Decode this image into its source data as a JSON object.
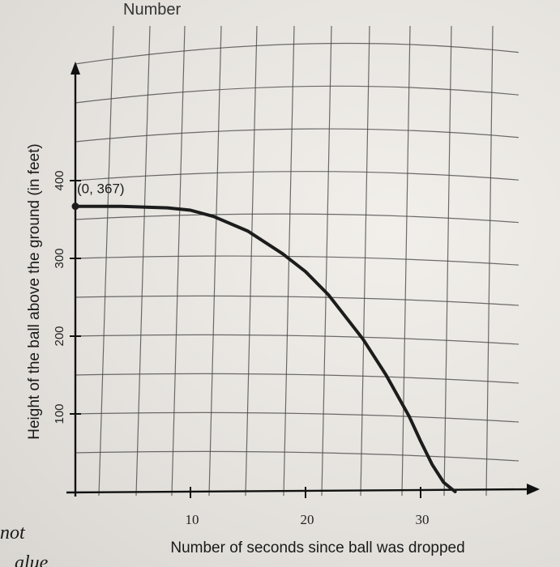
{
  "chart_data": {
    "type": "line",
    "title": "",
    "xlabel": "Number of seconds since ball was dropped",
    "ylabel": "Height of the ball above the ground (in feet)",
    "xlim": [
      0,
      34
    ],
    "ylim": [
      0,
      520
    ],
    "x_ticks": [
      10,
      20,
      30
    ],
    "y_ticks": [
      100,
      200,
      300,
      400
    ],
    "grid": true,
    "series": [
      {
        "x": [
          0,
          4,
          8,
          10,
          12,
          15,
          18,
          20,
          22,
          25,
          27,
          29,
          30,
          31,
          32,
          33
        ],
        "y": [
          367,
          367,
          365,
          362,
          354,
          335,
          306,
          283,
          253,
          196,
          150,
          97,
          65,
          35,
          12,
          0
        ]
      }
    ],
    "annotations": [
      {
        "text": "(0, 367)",
        "x": 0,
        "y": 367
      }
    ]
  },
  "page_fragments": {
    "top_text": "Number",
    "left_text": "not",
    "left_text_2": "alue"
  },
  "colors": {
    "curve": "#1c1c1c",
    "grid": "#4a4a4a",
    "axis": "#111111",
    "paper": "#eceae5"
  }
}
